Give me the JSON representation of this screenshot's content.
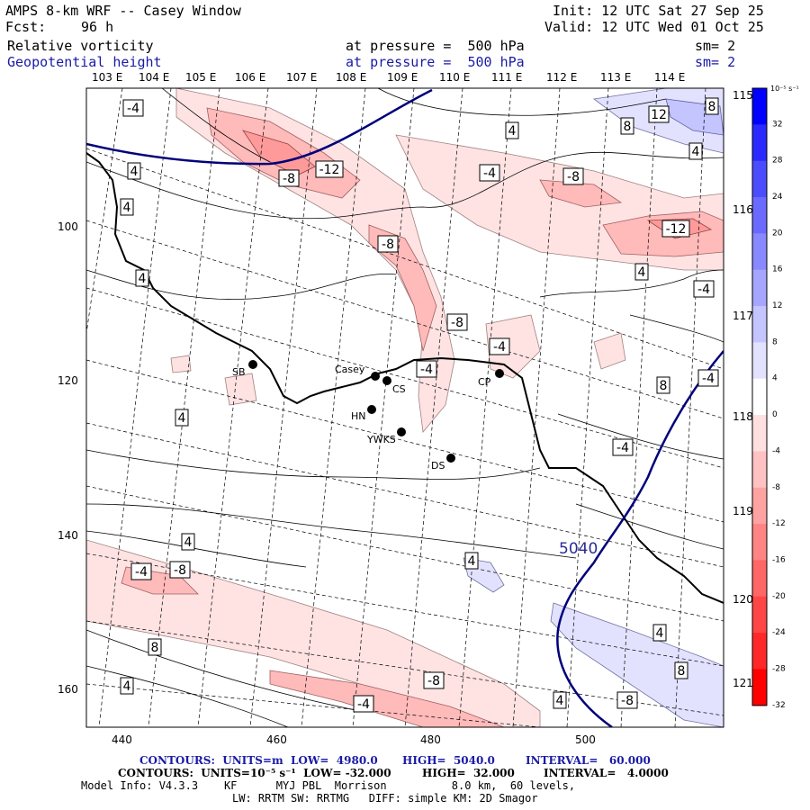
{
  "header": {
    "title": "AMPS 8-km WRF -- Casey Window",
    "fcst_label": "Fcst:",
    "fcst_value": "96 h",
    "init": "Init: 12 UTC Sat 27 Sep 25",
    "valid": "Valid: 12 UTC Wed 01 Oct 25",
    "field1_name": "Relative vorticity",
    "field1_level": "at pressure =  500 hPa",
    "field1_sm": "sm= 2",
    "field2_name": "Geopotential height",
    "field2_level": "at pressure =  500 hPa",
    "field2_sm": "sm= 2"
  },
  "axes": {
    "top_lon": [
      "103 E",
      "104 E",
      "105 E",
      "106 E",
      "107 E",
      "108 E",
      "109 E",
      "110 E",
      "111 E",
      "112 E",
      "113 E",
      "114 E"
    ],
    "right_lon": [
      "115 E",
      "116 E",
      "117 E",
      "118 E",
      "119 E",
      "120 E",
      "121 E"
    ],
    "left_grid": [
      "100",
      "120",
      "140",
      "160"
    ],
    "bottom_grid": [
      "440",
      "460",
      "480",
      "500"
    ]
  },
  "stations": [
    {
      "label": "SB"
    },
    {
      "label": "Casey"
    },
    {
      "label": "CS"
    },
    {
      "label": "CP"
    },
    {
      "label": "HN"
    },
    {
      "label": "YWKS"
    },
    {
      "label": "DS"
    }
  ],
  "contour_labels": {
    "height": "5040",
    "vorticity": [
      "-4",
      "4",
      "-12",
      "-8",
      "4",
      "12",
      "8",
      "-8",
      "4",
      "-4",
      "4",
      "-8",
      "-12",
      "4",
      "4",
      "-4",
      "-8",
      "-4",
      "-4",
      "-4",
      "8",
      "-4",
      "4",
      "4",
      "4",
      "-8",
      "-4",
      "8",
      "-8",
      "4",
      "8",
      "-8",
      "4",
      "-4",
      "4",
      "8"
    ]
  },
  "colorbar": {
    "units": "10⁻⁵ s⁻¹",
    "ticks": [
      "32",
      "28",
      "24",
      "20",
      "16",
      "12",
      "8",
      "4",
      "0",
      "-4",
      "-8",
      "-12",
      "-16",
      "-20",
      "-24",
      "-28",
      "-32"
    ],
    "colors": [
      "#0000ff",
      "#2a2aff",
      "#4c4cff",
      "#6a6aff",
      "#8888ff",
      "#a6a6ff",
      "#c4c4ff",
      "#e2e2ff",
      "#ffffff",
      "#ffe0e0",
      "#ffc2c2",
      "#ffa2a2",
      "#ff8484",
      "#ff6666",
      "#ff4646",
      "#ff2828",
      "#ff0000"
    ]
  },
  "footer": {
    "line1a": "CONTOURS:  UNITS=m  LOW=  4980.0",
    "line1b": "HIGH=  5040.0",
    "line1c": "INTERVAL=   60.000",
    "line2a": "CONTOURS:  UNITS=10⁻⁵ s⁻¹  LOW= -32.000",
    "line2b": "HIGH=  32.000",
    "line2c": "INTERVAL=   4.0000",
    "line3": "Model Info: V4.3.3    KF      MYJ PBL  Morrison          8.0 km,  60 levels,",
    "line4": "LW: RRTM SW: RRTMG   DIFF: simple KM: 2D Smagor"
  }
}
